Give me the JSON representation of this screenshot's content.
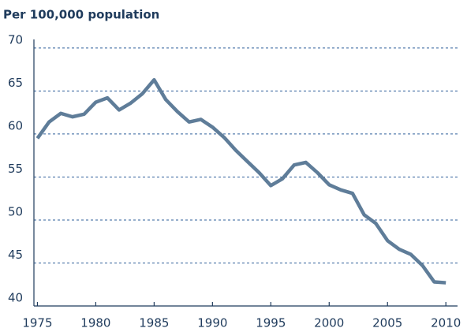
{
  "chart_data": {
    "type": "line",
    "title": "Per 100,000 population",
    "x": [
      1975,
      1976,
      1977,
      1978,
      1979,
      1980,
      1981,
      1982,
      1983,
      1984,
      1985,
      1986,
      1987,
      1988,
      1989,
      1990,
      1991,
      1992,
      1993,
      1994,
      1995,
      1996,
      1997,
      1998,
      1999,
      2000,
      2001,
      2002,
      2003,
      2004,
      2005,
      2006,
      2007,
      2008,
      2009,
      2010
    ],
    "series": [
      {
        "color": "#5f7d99",
        "values": [
          59.5,
          61.4,
          62.4,
          62.0,
          62.3,
          63.7,
          64.2,
          62.8,
          63.6,
          64.7,
          66.3,
          64.0,
          62.6,
          61.4,
          61.7,
          60.8,
          59.6,
          58.1,
          56.8,
          55.5,
          54.0,
          54.8,
          56.4,
          56.7,
          55.5,
          54.1,
          53.5,
          53.1,
          50.6,
          49.6,
          47.6,
          46.6,
          46.0,
          44.7,
          42.8,
          42.7
        ]
      }
    ],
    "xlim": [
      1974.7,
      2011.0
    ],
    "xticks": [
      1975,
      1980,
      1985,
      1990,
      1995,
      2000,
      2005,
      2010
    ],
    "ylim": [
      40,
      71
    ],
    "yticks": [
      40,
      45,
      50,
      55,
      60,
      65,
      70
    ],
    "grid": true
  }
}
